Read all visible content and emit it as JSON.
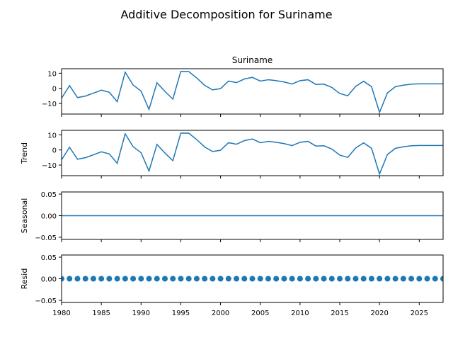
{
  "figure_title": "Additive Decomposition for Suriname",
  "colors": {
    "line": "#1f77b4",
    "marker": "#1f77b4",
    "frame": "#000000"
  },
  "chart_data": [
    {
      "type": "line",
      "panel": "observed",
      "title": "Suriname",
      "ylabel": "",
      "xlim": [
        1980,
        2028
      ],
      "ylim": [
        -17,
        13
      ],
      "yticks": [
        10,
        0,
        -10
      ],
      "x": [
        1980,
        1981,
        1982,
        1983,
        1984,
        1985,
        1986,
        1987,
        1988,
        1989,
        1990,
        1991,
        1992,
        1993,
        1994,
        1995,
        1996,
        1997,
        1998,
        1999,
        2000,
        2001,
        2002,
        2003,
        2004,
        2005,
        2006,
        2007,
        2008,
        2009,
        2010,
        2011,
        2012,
        2013,
        2014,
        2015,
        2016,
        2017,
        2018,
        2019,
        2020,
        2021,
        2022,
        2023,
        2024,
        2025,
        2026,
        2027,
        2028
      ],
      "values": [
        -6.5,
        1.8,
        -6.1,
        -5.1,
        -3.2,
        -1.2,
        -2.6,
        -8.8,
        10.7,
        2.2,
        -1.8,
        -13.9,
        3.7,
        -2.0,
        -7.1,
        11.2,
        11.1,
        6.9,
        2.0,
        -1.0,
        -0.2,
        4.8,
        3.8,
        6.2,
        7.3,
        4.8,
        5.7,
        5.1,
        4.2,
        2.9,
        5.1,
        5.7,
        2.6,
        2.8,
        0.6,
        -3.4,
        -4.9,
        1.3,
        4.7,
        1.1,
        -15.9,
        -3.0,
        1.1,
        2.1,
        2.8,
        3.0,
        3.0,
        3.0,
        3.0
      ]
    },
    {
      "type": "line",
      "panel": "trend",
      "title": "",
      "ylabel": "Trend",
      "xlim": [
        1980,
        2028
      ],
      "ylim": [
        -17,
        13
      ],
      "yticks": [
        10,
        0,
        -10
      ],
      "x": [
        1980,
        1981,
        1982,
        1983,
        1984,
        1985,
        1986,
        1987,
        1988,
        1989,
        1990,
        1991,
        1992,
        1993,
        1994,
        1995,
        1996,
        1997,
        1998,
        1999,
        2000,
        2001,
        2002,
        2003,
        2004,
        2005,
        2006,
        2007,
        2008,
        2009,
        2010,
        2011,
        2012,
        2013,
        2014,
        2015,
        2016,
        2017,
        2018,
        2019,
        2020,
        2021,
        2022,
        2023,
        2024,
        2025,
        2026,
        2027,
        2028
      ],
      "values": [
        -6.5,
        1.8,
        -6.1,
        -5.1,
        -3.2,
        -1.2,
        -2.6,
        -8.8,
        10.7,
        2.2,
        -1.8,
        -13.9,
        3.7,
        -2.0,
        -7.1,
        11.2,
        11.1,
        6.9,
        2.0,
        -1.0,
        -0.2,
        4.8,
        3.8,
        6.2,
        7.3,
        4.8,
        5.7,
        5.1,
        4.2,
        2.9,
        5.1,
        5.7,
        2.6,
        2.8,
        0.6,
        -3.4,
        -4.9,
        1.3,
        4.7,
        1.1,
        -15.9,
        -3.0,
        1.1,
        2.1,
        2.8,
        3.0,
        3.0,
        3.0,
        3.0
      ]
    },
    {
      "type": "line",
      "panel": "seasonal",
      "title": "",
      "ylabel": "Seasonal",
      "xlim": [
        1980,
        2028
      ],
      "ylim": [
        -0.055,
        0.055
      ],
      "yticks": [
        0.05,
        0.0,
        -0.05
      ],
      "ytick_labels": [
        "0.05",
        "0.00",
        "−0.05"
      ],
      "x": [
        1980,
        2028
      ],
      "values": [
        0,
        0
      ]
    },
    {
      "type": "scatter",
      "panel": "resid",
      "title": "",
      "ylabel": "Resid",
      "xlim": [
        1980,
        2028
      ],
      "ylim": [
        -0.055,
        0.055
      ],
      "yticks": [
        0.05,
        0.0,
        -0.05
      ],
      "ytick_labels": [
        "0.05",
        "0.00",
        "−0.05"
      ],
      "xticks": [
        1980,
        1985,
        1990,
        1995,
        2000,
        2005,
        2010,
        2015,
        2020,
        2025
      ],
      "x": [
        1980,
        1981,
        1982,
        1983,
        1984,
        1985,
        1986,
        1987,
        1988,
        1989,
        1990,
        1991,
        1992,
        1993,
        1994,
        1995,
        1996,
        1997,
        1998,
        1999,
        2000,
        2001,
        2002,
        2003,
        2004,
        2005,
        2006,
        2007,
        2008,
        2009,
        2010,
        2011,
        2012,
        2013,
        2014,
        2015,
        2016,
        2017,
        2018,
        2019,
        2020,
        2021,
        2022,
        2023,
        2024,
        2025,
        2026,
        2027,
        2028
      ],
      "values": [
        0,
        0,
        0,
        0,
        0,
        0,
        0,
        0,
        0,
        0,
        0,
        0,
        0,
        0,
        0,
        0,
        0,
        0,
        0,
        0,
        0,
        0,
        0,
        0,
        0,
        0,
        0,
        0,
        0,
        0,
        0,
        0,
        0,
        0,
        0,
        0,
        0,
        0,
        0,
        0,
        0,
        0,
        0,
        0,
        0,
        0,
        0,
        0,
        0
      ]
    }
  ]
}
